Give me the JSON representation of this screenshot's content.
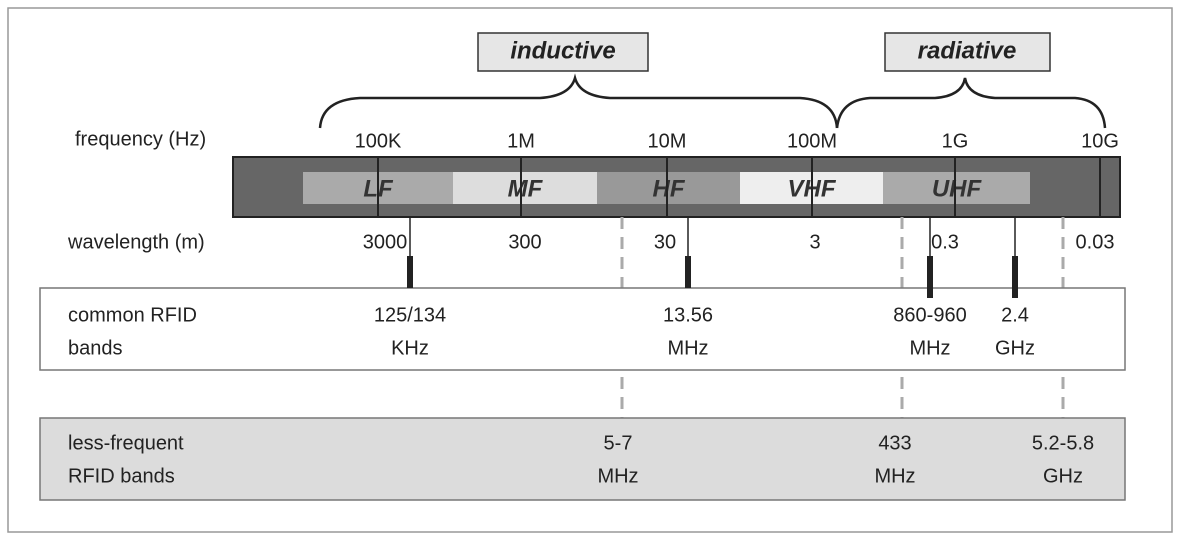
{
  "groups": [
    {
      "label": "inductive"
    },
    {
      "label": "radiative"
    }
  ],
  "frequency_label": "frequency (Hz)",
  "frequencies": [
    "100K",
    "1M",
    "10M",
    "100M",
    "1G",
    "10G"
  ],
  "bands": [
    "LF",
    "MF",
    "HF",
    "VHF",
    "UHF"
  ],
  "wavelength_label": "wavelength (m)",
  "wavelengths": [
    "3000",
    "300",
    "30",
    "3",
    "0.3",
    "0.03"
  ],
  "common_bands": {
    "label": [
      "common RFID",
      "bands"
    ],
    "items": [
      [
        "125/134",
        "KHz"
      ],
      [
        "13.56",
        "MHz"
      ],
      [
        "860-960",
        "MHz"
      ],
      [
        "2.4",
        "GHz"
      ]
    ]
  },
  "less_frequent_bands": {
    "label": [
      "less-frequent",
      "RFID bands"
    ],
    "items": [
      [
        "5-7",
        "MHz"
      ],
      [
        "433",
        "MHz"
      ],
      [
        "5.2-5.8",
        "GHz"
      ]
    ]
  }
}
